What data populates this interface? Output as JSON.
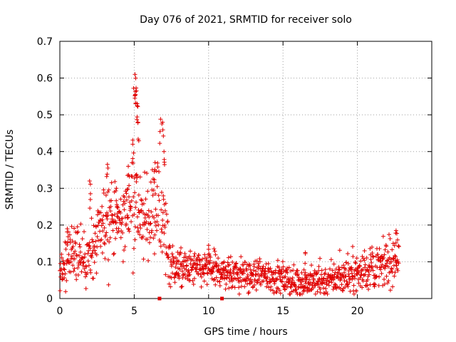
{
  "chart_data": {
    "type": "scatter",
    "title": "Day 076 of 2021, SRMTID for receiver solo",
    "xlabel": "GPS time / hours",
    "ylabel": "SRMTID / TECUs",
    "xlim": [
      0,
      25
    ],
    "ylim": [
      0,
      0.7
    ],
    "xticks": [
      0,
      5,
      10,
      15,
      20
    ],
    "xtick_labels": [
      "0",
      "5",
      "10",
      "15",
      "20"
    ],
    "yticks": [
      0,
      0.1,
      0.2,
      0.3,
      0.4,
      0.5,
      0.6,
      0.7
    ],
    "ytick_labels": [
      "0",
      "0.1",
      "0.2",
      "0.3",
      "0.4",
      "0.5",
      "0.6",
      "0.7"
    ],
    "grid": true,
    "marker": "plus",
    "color": "#e00000",
    "data_gaps_hours": [
      6.7,
      10.9
    ],
    "envelope": {
      "description": "approximate mean and spread of the SRMTID scatter per hour",
      "x": [
        0,
        0.5,
        1,
        1.5,
        2,
        2.5,
        3,
        3.3,
        3.7,
        4,
        4.5,
        4.8,
        5.0,
        5.2,
        5.5,
        6,
        6.3,
        6.7,
        7,
        7.3,
        7.6,
        8,
        9,
        10,
        11,
        12,
        13,
        14,
        15,
        16,
        17,
        18,
        19,
        20,
        21,
        22,
        22.8
      ],
      "mean": [
        0.08,
        0.11,
        0.11,
        0.1,
        0.13,
        0.15,
        0.19,
        0.24,
        0.2,
        0.21,
        0.23,
        0.28,
        0.33,
        0.25,
        0.2,
        0.22,
        0.24,
        0.26,
        0.2,
        0.12,
        0.09,
        0.08,
        0.08,
        0.08,
        0.07,
        0.065,
        0.06,
        0.065,
        0.05,
        0.045,
        0.045,
        0.05,
        0.06,
        0.07,
        0.08,
        0.09,
        0.12
      ],
      "spread": [
        0.03,
        0.04,
        0.04,
        0.035,
        0.06,
        0.05,
        0.06,
        0.08,
        0.06,
        0.06,
        0.07,
        0.08,
        0.12,
        0.08,
        0.06,
        0.07,
        0.08,
        0.09,
        0.08,
        0.05,
        0.035,
        0.03,
        0.03,
        0.03,
        0.03,
        0.03,
        0.025,
        0.03,
        0.025,
        0.025,
        0.025,
        0.025,
        0.03,
        0.03,
        0.035,
        0.035,
        0.04
      ]
    },
    "peaks": [
      {
        "x": 2.0,
        "y": 0.32
      },
      {
        "x": 3.2,
        "y": 0.365
      },
      {
        "x": 3.8,
        "y": 0.3
      },
      {
        "x": 4.6,
        "y": 0.36
      },
      {
        "x": 4.9,
        "y": 0.42
      },
      {
        "x": 5.05,
        "y": 0.61
      },
      {
        "x": 5.1,
        "y": 0.6
      },
      {
        "x": 5.15,
        "y": 0.565
      },
      {
        "x": 5.2,
        "y": 0.53
      },
      {
        "x": 5.25,
        "y": 0.48
      },
      {
        "x": 6.4,
        "y": 0.37
      },
      {
        "x": 6.9,
        "y": 0.48
      },
      {
        "x": 7.0,
        "y": 0.4
      },
      {
        "x": 0.5,
        "y": 0.19
      },
      {
        "x": 10.0,
        "y": 0.145
      },
      {
        "x": 16.5,
        "y": 0.125
      },
      {
        "x": 22.6,
        "y": 0.185
      }
    ]
  }
}
